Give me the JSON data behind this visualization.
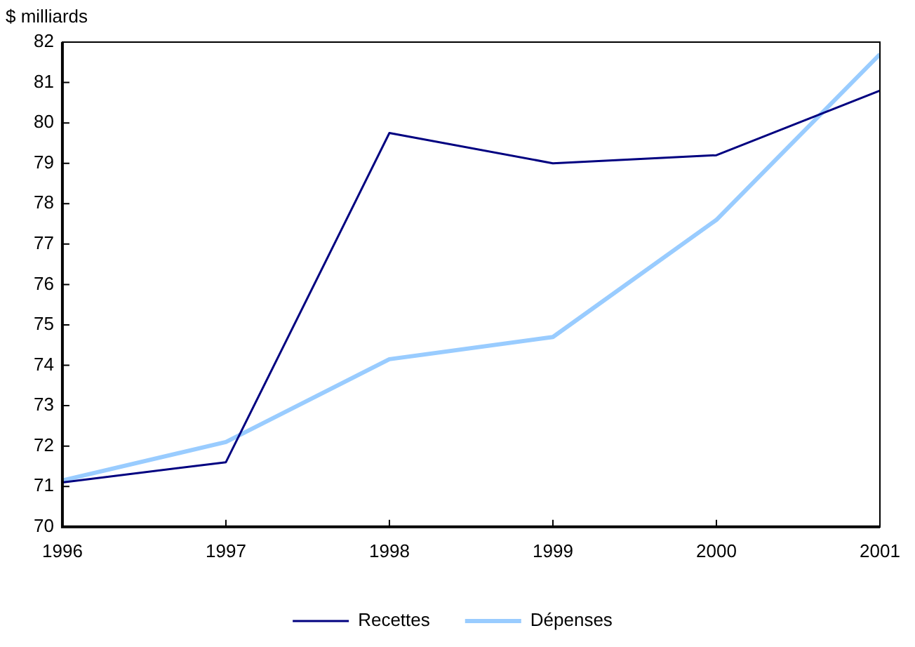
{
  "chart_data": {
    "type": "line",
    "ylabel": "$ milliards",
    "x": [
      1996,
      1997,
      1998,
      1999,
      2000,
      2001
    ],
    "xlim": [
      1996,
      2001
    ],
    "xticks": [
      1996,
      1997,
      1998,
      1999,
      2000,
      2001
    ],
    "ylim": [
      70,
      82
    ],
    "yticks": [
      70,
      71,
      72,
      73,
      74,
      75,
      76,
      77,
      78,
      79,
      80,
      81,
      82
    ],
    "grid": false,
    "legend": "bottom",
    "marker": "none",
    "line_style": "solid",
    "series": [
      {
        "name": "Recettes",
        "color": "#000080",
        "values": [
          71.1,
          71.6,
          79.75,
          79.0,
          79.2,
          80.8
        ]
      },
      {
        "name": "Dépenses",
        "color": "#99ccff",
        "values": [
          71.15,
          72.1,
          74.15,
          74.7,
          77.6,
          81.7
        ]
      }
    ]
  }
}
